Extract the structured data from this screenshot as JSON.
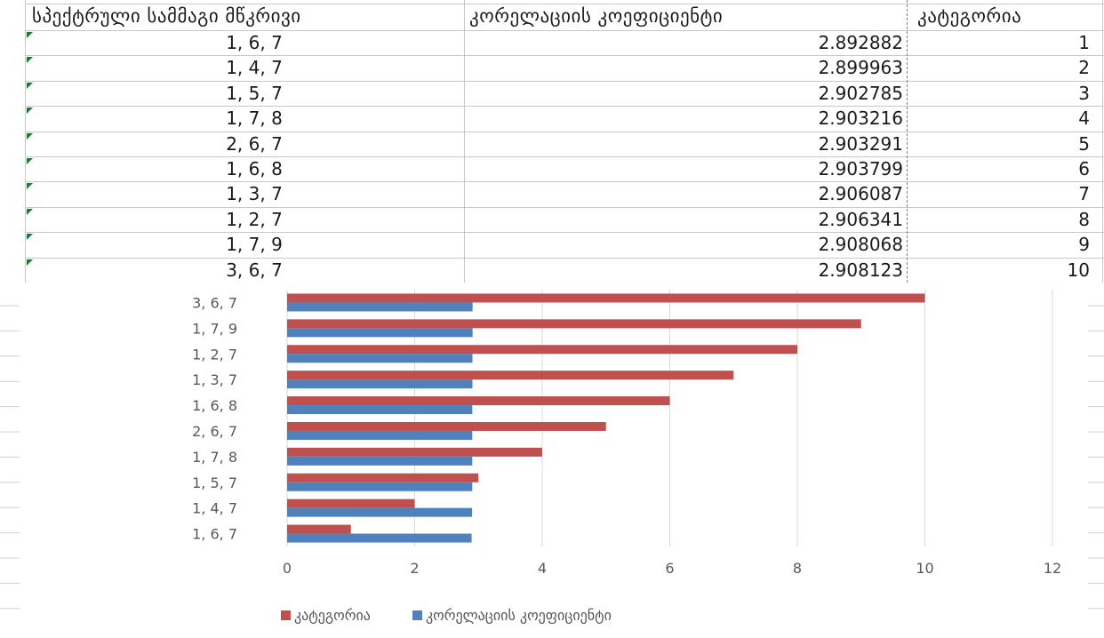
{
  "sheet": {
    "headers": [
      "სპექტრული სამმაგი მწკრივი",
      "კორელაციის კოეფიციენტი",
      "კატეგორია"
    ],
    "rows": [
      {
        "triplet": "1, 6, 7",
        "coef": "2.892882",
        "cat": "1"
      },
      {
        "triplet": "1, 4, 7",
        "coef": "2.899963",
        "cat": "2"
      },
      {
        "triplet": "1, 5, 7",
        "coef": "2.902785",
        "cat": "3"
      },
      {
        "triplet": "1, 7, 8",
        "coef": "2.903216",
        "cat": "4"
      },
      {
        "triplet": "2, 6, 7",
        "coef": "2.903291",
        "cat": "5"
      },
      {
        "triplet": "1, 6, 8",
        "coef": "2.903799",
        "cat": "6"
      },
      {
        "triplet": "1, 3, 7",
        "coef": "2.906087",
        "cat": "7"
      },
      {
        "triplet": "1, 2, 7",
        "coef": "2.906341",
        "cat": "8"
      },
      {
        "triplet": "1, 7, 9",
        "coef": "2.908068",
        "cat": "9"
      },
      {
        "triplet": "3, 6, 7",
        "coef": "2.908123",
        "cat": "10"
      }
    ]
  },
  "colors": {
    "series_category": "#c0504d",
    "series_coef": "#4f81bd",
    "gridline": "#d9d9d9",
    "cell_border": "#c8c8c8",
    "error_triangle": "#1e7b34"
  },
  "chart_data": {
    "type": "bar",
    "orientation": "horizontal",
    "categories": [
      "1, 6, 7",
      "1, 4, 7",
      "1, 5, 7",
      "1, 7, 8",
      "2, 6, 7",
      "1, 6, 8",
      "1, 3, 7",
      "1, 2, 7",
      "1, 7, 9",
      "3, 6, 7"
    ],
    "series": [
      {
        "name": "კატეგორია",
        "values": [
          1,
          2,
          3,
          4,
          5,
          6,
          7,
          8,
          9,
          10
        ]
      },
      {
        "name": "კორელაციის კოეფიციენტი",
        "values": [
          2.892882,
          2.899963,
          2.902785,
          2.903216,
          2.903291,
          2.903799,
          2.906087,
          2.906341,
          2.908068,
          2.908123
        ]
      }
    ],
    "xlim": [
      0,
      12
    ],
    "xticks": [
      "0",
      "2",
      "4",
      "6",
      "8",
      "10",
      "12"
    ],
    "title": "",
    "xlabel": "",
    "ylabel": "",
    "grid": true,
    "legend_position": "bottom"
  }
}
